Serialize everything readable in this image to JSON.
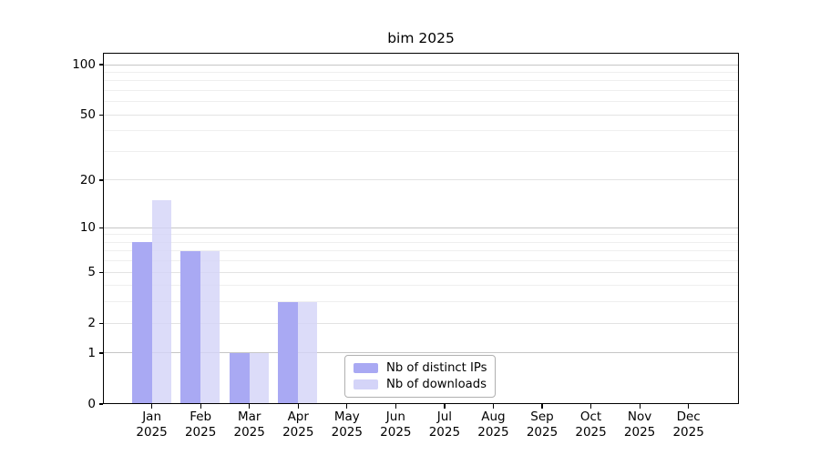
{
  "title": "bim 2025",
  "chart_data": {
    "type": "bar",
    "title": "bim 2025",
    "categories": [
      "Jan",
      "Feb",
      "Mar",
      "Apr",
      "May",
      "Jun",
      "Jul",
      "Aug",
      "Sep",
      "Oct",
      "Nov",
      "Dec"
    ],
    "x_year_label": "2025",
    "series": [
      {
        "name": "Nb of distinct IPs",
        "color": "#a9a9f3",
        "values": [
          8,
          7,
          1,
          3,
          0,
          0,
          0,
          0,
          0,
          0,
          0,
          0
        ]
      },
      {
        "name": "Nb of downloads",
        "color": "#d4d4f8",
        "values": [
          15,
          7,
          1,
          3,
          0,
          0,
          0,
          0,
          0,
          0,
          0,
          0
        ]
      }
    ],
    "y_axis": {
      "scale": "log(value+1)",
      "ylim": [
        0,
        100
      ],
      "tick_values": [
        100,
        50,
        20,
        10,
        5,
        2,
        1,
        0
      ],
      "tick_labels": [
        "100",
        "50",
        "20",
        "10",
        "5",
        "2",
        "1",
        "0"
      ]
    },
    "grid": true,
    "legend": {
      "position": "inside-bottom-center",
      "entries": [
        "Nb of distinct IPs",
        "Nb of downloads"
      ]
    }
  },
  "colors": {
    "background": "#ffffff",
    "axis": "#000000",
    "grid_power10": "#c6c6c6",
    "grid_labeled": "#e3e3e3",
    "grid_minor": "#efefef",
    "legend_border": "#b0b0b0"
  }
}
